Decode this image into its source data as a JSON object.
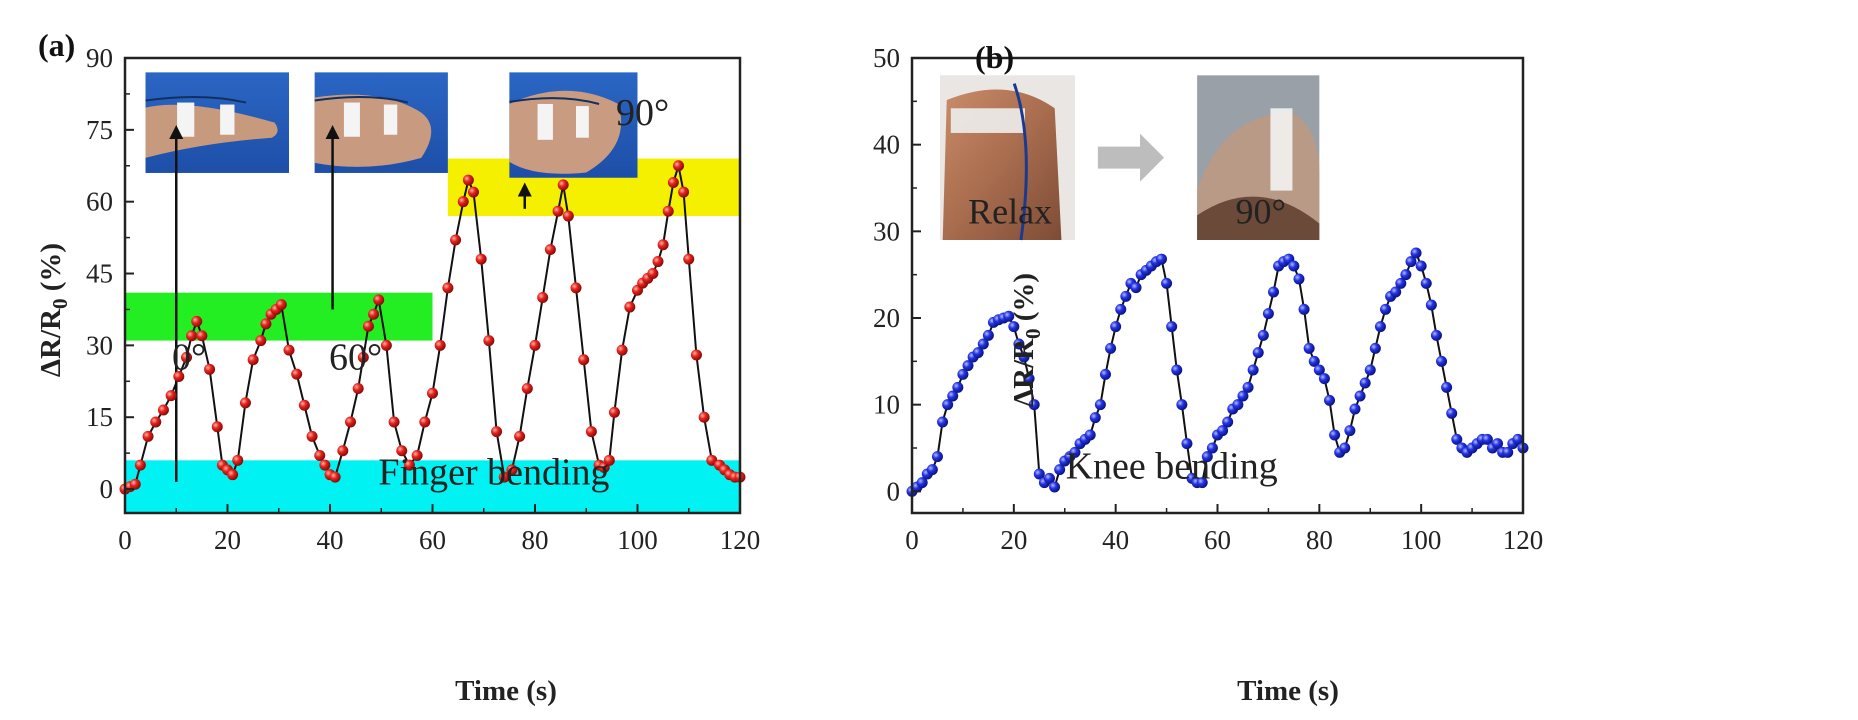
{
  "chart_data": [
    {
      "type": "line",
      "panel_label": "(a)",
      "title": "",
      "xlabel": "Time (s)",
      "ylabel": "ΔR/R0 (%)",
      "xlim": [
        0,
        120
      ],
      "ylim": [
        -5,
        90
      ],
      "xticks": [
        0,
        20,
        40,
        60,
        80,
        100,
        120
      ],
      "yticks": [
        0,
        15,
        30,
        45,
        60,
        75,
        90
      ],
      "grid": false,
      "marker_color": "#e0201b",
      "line_color": "#111111",
      "bands": [
        {
          "y": [
            -5,
            6
          ],
          "x": [
            0,
            120
          ],
          "color": "#00f2f2"
        },
        {
          "y": [
            31,
            41
          ],
          "x": [
            0,
            60
          ],
          "color": "#22ee22"
        },
        {
          "y": [
            57,
            69
          ],
          "x": [
            63,
            120
          ],
          "color": "#f5f000"
        }
      ],
      "annotations": [
        {
          "text": "Finger  bending",
          "x": 72,
          "y": 1
        },
        {
          "text": "0°",
          "x": 12.5,
          "y": 25
        },
        {
          "text": "60°",
          "x": 45,
          "y": 25
        },
        {
          "text": "90°",
          "x": 101,
          "y": 76
        }
      ],
      "arrows": [
        {
          "x": 10,
          "y_from": 1.5,
          "y_to": 76
        },
        {
          "x": 40.5,
          "y_from": 37.5,
          "y_to": 76
        },
        {
          "x": 78,
          "y_from": 58.5,
          "y_to": 64
        }
      ],
      "insets": [
        {
          "name": "finger 0°",
          "x": [
            4,
            32
          ],
          "y": [
            66,
            87
          ]
        },
        {
          "name": "finger 60°",
          "x": [
            37,
            63
          ],
          "y": [
            66,
            87
          ]
        },
        {
          "name": "finger 90°",
          "x": [
            75,
            100
          ],
          "y": [
            65,
            87
          ]
        }
      ],
      "series": [
        {
          "x": [
            0,
            1,
            2,
            3,
            4.5,
            6,
            7.5,
            9,
            10.5,
            12,
            13,
            14,
            15,
            16.5,
            18,
            19,
            20,
            21,
            22,
            23.5,
            25,
            26.5,
            27.5,
            28.5,
            29.5,
            30.5,
            32,
            33.5,
            35,
            36.5,
            38,
            39,
            40,
            41,
            42.5,
            44,
            45.5,
            46.5,
            47.5,
            48.5,
            49.5,
            51,
            52.5,
            54,
            55.5,
            57,
            58.5,
            60,
            61.5,
            63,
            64.5,
            66,
            67,
            68,
            69.5,
            71,
            72.5,
            74,
            75.5,
            77,
            78.5,
            80,
            81.5,
            83,
            84.5,
            85.5,
            86.5,
            88,
            89.5,
            91,
            92.5,
            93.5,
            94.5,
            95.5,
            97,
            98.5,
            100,
            101,
            102,
            103,
            104,
            105,
            106,
            107,
            108,
            109,
            110,
            111.5,
            113,
            114.5,
            116,
            117,
            118,
            119,
            120
          ],
          "y": [
            0,
            0.5,
            1,
            5,
            11,
            14,
            16.5,
            19.5,
            23.5,
            27.5,
            32,
            35,
            32,
            25,
            13,
            5,
            4,
            3,
            6,
            18,
            27,
            31,
            34.5,
            36.5,
            37.5,
            38.5,
            29,
            24,
            17.5,
            11,
            7,
            5,
            3,
            2.5,
            8,
            14,
            21,
            27.5,
            34,
            36.5,
            39.5,
            30,
            14,
            8,
            5,
            7,
            14,
            20,
            30,
            42,
            52,
            60,
            64.5,
            62,
            48,
            31,
            12,
            2.5,
            4,
            11,
            21,
            30,
            40,
            50,
            58,
            63.5,
            57,
            42,
            27,
            12,
            5,
            4.5,
            6,
            16,
            29,
            38,
            41.5,
            43,
            44,
            45,
            47.5,
            51,
            58,
            64,
            67.5,
            62,
            48,
            28,
            15,
            6,
            5,
            4,
            3,
            2.5,
            2.5
          ]
        }
      ]
    },
    {
      "type": "line",
      "panel_label": "(b)",
      "title": "",
      "xlabel": "Time (s)",
      "ylabel": "ΔR/R0 (%)",
      "xlim": [
        0,
        120
      ],
      "ylim": [
        -2.5,
        50
      ],
      "xticks": [
        0,
        20,
        40,
        60,
        80,
        100,
        120
      ],
      "yticks": [
        0,
        10,
        20,
        30,
        40,
        50
      ],
      "grid": false,
      "marker_color": "#1f2ee0",
      "line_color": "#111111",
      "annotations": [
        {
          "text": "Knee  bending",
          "x": 51,
          "y": 1.5
        }
      ],
      "insets": [
        {
          "name": "knee relax",
          "caption": "Relax",
          "x": [
            5.5,
            32
          ],
          "y": [
            29,
            48
          ]
        },
        {
          "name": "knee 90°",
          "caption": "90°",
          "x": [
            56,
            80
          ],
          "y": [
            29,
            48
          ]
        }
      ],
      "transition_arrow": {
        "x": [
          36.5,
          49.5
        ],
        "y": 38.5
      },
      "series": [
        {
          "x": [
            0,
            1,
            2,
            3,
            4,
            5,
            6,
            7,
            8,
            9,
            10,
            11,
            12,
            13,
            14,
            15,
            16,
            17,
            18,
            19,
            20,
            21,
            22,
            23,
            24,
            25,
            26,
            27,
            28,
            29,
            30,
            31,
            32,
            33,
            34,
            35,
            36,
            37,
            38,
            39,
            40,
            41,
            42,
            43,
            44,
            45,
            46,
            47,
            48,
            49,
            50,
            51,
            52,
            53,
            54,
            55,
            56,
            57,
            58,
            59,
            60,
            61,
            62,
            63,
            64,
            65,
            66,
            67,
            68,
            69,
            70,
            71,
            72,
            73,
            74,
            75,
            76,
            77,
            78,
            79,
            80,
            81,
            82,
            83,
            84,
            85,
            86,
            87,
            88,
            89,
            90,
            91,
            92,
            93,
            94,
            95,
            96,
            97,
            98,
            99,
            100,
            101,
            102,
            103,
            104,
            105,
            106,
            107,
            108,
            109,
            110,
            111,
            112,
            113,
            114,
            115,
            116,
            117,
            118,
            119,
            120
          ],
          "y": [
            0,
            0.5,
            1,
            2,
            2.5,
            4,
            8,
            10,
            11,
            12,
            13.5,
            14.5,
            15.5,
            16,
            17,
            18,
            19.5,
            19.8,
            20,
            20.2,
            19,
            17,
            15.5,
            13,
            10,
            2,
            1,
            1.5,
            0.5,
            2.5,
            3.5,
            4,
            4.5,
            5.5,
            6,
            6.5,
            8.5,
            10,
            13.5,
            16.5,
            19,
            21,
            22.5,
            24,
            23.5,
            25,
            25.5,
            26,
            26.5,
            26.8,
            24,
            19,
            14,
            10,
            5.5,
            1.5,
            1,
            1,
            4,
            5,
            6.5,
            7,
            8,
            9.5,
            10,
            11,
            12,
            14,
            16,
            18,
            20.5,
            23,
            26,
            26.5,
            26.8,
            26,
            24.5,
            21,
            16.5,
            15,
            14,
            13,
            10.5,
            6.5,
            4.5,
            5,
            7,
            9.5,
            11,
            12.5,
            14,
            16.5,
            19,
            21,
            22.5,
            23,
            24,
            25,
            26.5,
            27.5,
            26,
            24,
            21.5,
            18,
            15,
            12,
            9,
            6,
            5,
            4.5,
            5,
            5.5,
            6,
            6,
            5,
            5.5,
            4.5,
            4.5,
            5.5,
            6,
            5
          ]
        }
      ]
    }
  ]
}
